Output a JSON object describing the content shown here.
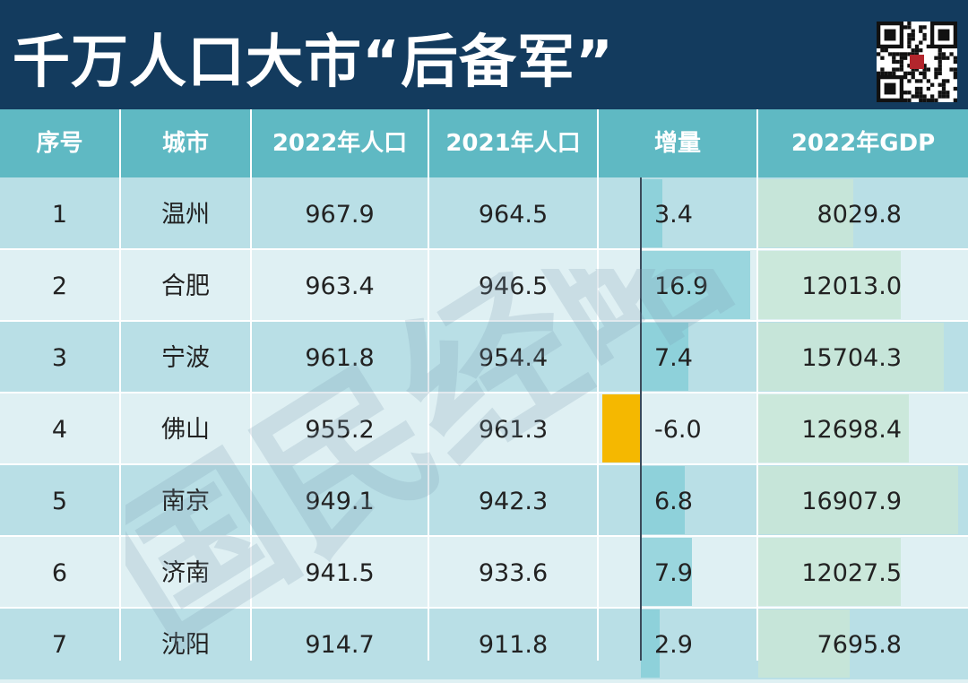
{
  "title": "千万人口大市“后备军”",
  "qr_icon": "qr-code-icon",
  "watermark": "国民经略",
  "colors": {
    "title_bg": "#133b5e",
    "header_bg": "#5fb9c3",
    "row_dark": "#b9dfe6",
    "row_light": "#dff0f3",
    "increase_bar": "#7ccbd4",
    "negative_bar": "#f5b800",
    "gdp_bar": "#c8e6d6"
  },
  "table": {
    "headers": [
      "序号",
      "城市",
      "2022年人口",
      "2021年人口",
      "增量",
      "2022年GDP"
    ],
    "rows": [
      {
        "rank": "1",
        "city": "温州",
        "pop2022": "967.9",
        "pop2021": "964.5",
        "increase": "3.4",
        "gdp2022": "8029.8"
      },
      {
        "rank": "2",
        "city": "合肥",
        "pop2022": "963.4",
        "pop2021": "946.5",
        "increase": "16.9",
        "gdp2022": "12013.0"
      },
      {
        "rank": "3",
        "city": "宁波",
        "pop2022": "961.8",
        "pop2021": "954.4",
        "increase": "7.4",
        "gdp2022": "15704.3"
      },
      {
        "rank": "4",
        "city": "佛山",
        "pop2022": "955.2",
        "pop2021": "961.3",
        "increase": "-6.0",
        "gdp2022": "12698.4"
      },
      {
        "rank": "5",
        "city": "南京",
        "pop2022": "949.1",
        "pop2021": "942.3",
        "increase": "6.8",
        "gdp2022": "16907.9"
      },
      {
        "rank": "6",
        "city": "济南",
        "pop2022": "941.5",
        "pop2021": "933.6",
        "increase": "7.9",
        "gdp2022": "12027.5"
      },
      {
        "rank": "7",
        "city": "沈阳",
        "pop2022": "914.7",
        "pop2021": "911.8",
        "increase": "2.9",
        "gdp2022": "7695.8"
      }
    ]
  }
}
